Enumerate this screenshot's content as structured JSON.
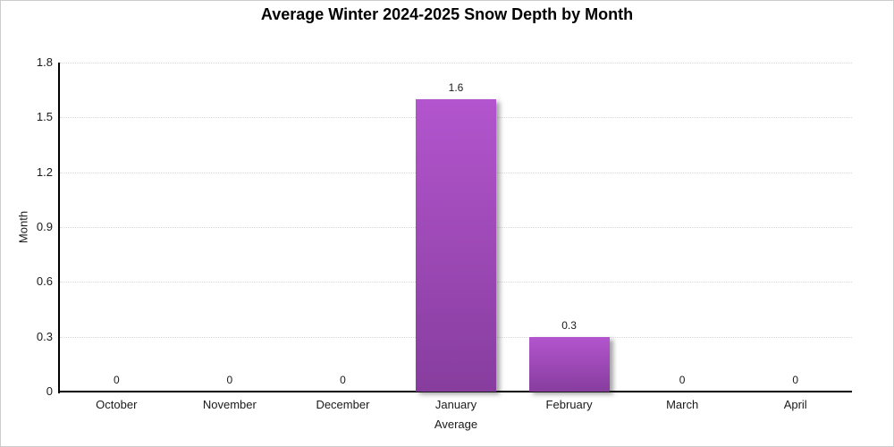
{
  "chart_data": {
    "type": "bar",
    "title": "Average Winter 2024-2025 Snow Depth by Month",
    "xlabel": "Average",
    "ylabel": "Month",
    "categories": [
      "October",
      "November",
      "December",
      "January",
      "February",
      "March",
      "April"
    ],
    "values": [
      0,
      0,
      0,
      1.6,
      0.3,
      0,
      0
    ],
    "value_labels": [
      "0",
      "0",
      "0",
      "1.6",
      "0.3",
      "0",
      "0"
    ],
    "ylim": [
      0,
      1.8
    ],
    "yticks": [
      0,
      0.3,
      0.6,
      0.9,
      1.2,
      1.5,
      1.8
    ],
    "ytick_labels": [
      "0",
      "0.3",
      "0.6",
      "0.9",
      "1.2",
      "1.5",
      "1.8"
    ],
    "grid": "horizontal-dotted",
    "legend": "none",
    "colors": {
      "bar_gradient_top": "#b355ce",
      "bar_gradient_bottom": "#873d9e",
      "axis": "#000000",
      "gridline": "#d9d9d9",
      "text": "#1a1a1a",
      "background": "#ffffff",
      "frame_border": "#cccccc"
    }
  }
}
